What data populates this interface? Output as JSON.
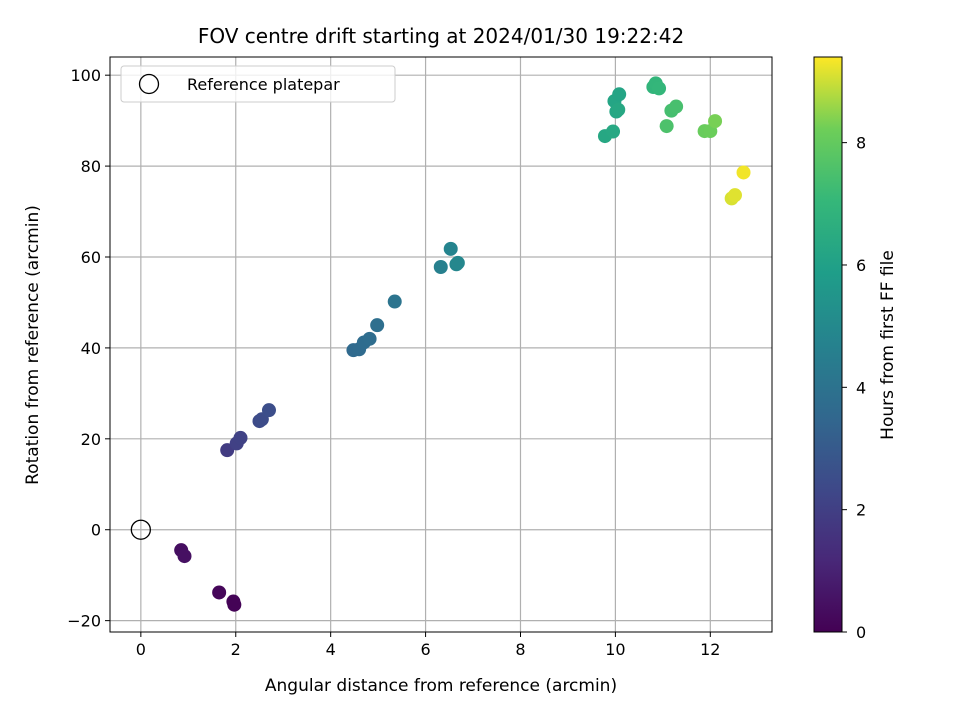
{
  "chart_data": {
    "type": "scatter",
    "title": "FOV centre drift starting at 2024/01/30 19:22:42",
    "xlabel": "Angular distance from reference (arcmin)",
    "ylabel": "Rotation from reference (arcmin)",
    "xlim": [
      -0.65,
      13.3
    ],
    "ylim": [
      -22.5,
      104.0
    ],
    "xticks": [
      0,
      2,
      4,
      6,
      8,
      10,
      12
    ],
    "yticks": [
      -20,
      0,
      20,
      40,
      60,
      80,
      100
    ],
    "grid": true,
    "legend": {
      "location": "top-left",
      "entries": [
        "Reference platepar"
      ]
    },
    "reference_point": {
      "x": 0,
      "y": 0,
      "label": "Reference platepar"
    },
    "colorbar": {
      "label": "Hours from first FF file",
      "range": [
        0,
        9.4
      ],
      "ticks": [
        0,
        2,
        4,
        6,
        8
      ],
      "colormap": "viridis"
    },
    "points": [
      {
        "x": 0.85,
        "y": -4.5,
        "c": 0.4
      },
      {
        "x": 0.92,
        "y": -5.8,
        "c": 0.45
      },
      {
        "x": 1.65,
        "y": -13.8,
        "c": 0.15
      },
      {
        "x": 1.95,
        "y": -15.8,
        "c": 0.1
      },
      {
        "x": 1.97,
        "y": -16.5,
        "c": 0.05
      },
      {
        "x": 1.82,
        "y": 17.5,
        "c": 1.9
      },
      {
        "x": 2.02,
        "y": 19.0,
        "c": 2.05
      },
      {
        "x": 2.1,
        "y": 20.2,
        "c": 2.1
      },
      {
        "x": 2.5,
        "y": 23.9,
        "c": 2.4
      },
      {
        "x": 2.55,
        "y": 24.3,
        "c": 2.45
      },
      {
        "x": 2.7,
        "y": 26.3,
        "c": 2.55
      },
      {
        "x": 4.48,
        "y": 39.5,
        "c": 3.6
      },
      {
        "x": 4.6,
        "y": 39.7,
        "c": 3.65
      },
      {
        "x": 4.7,
        "y": 41.2,
        "c": 3.7
      },
      {
        "x": 4.82,
        "y": 42.0,
        "c": 3.75
      },
      {
        "x": 4.98,
        "y": 45.0,
        "c": 3.85
      },
      {
        "x": 5.35,
        "y": 50.2,
        "c": 4.05
      },
      {
        "x": 6.32,
        "y": 57.8,
        "c": 4.6
      },
      {
        "x": 6.53,
        "y": 61.8,
        "c": 4.8
      },
      {
        "x": 6.65,
        "y": 58.4,
        "c": 4.85
      },
      {
        "x": 6.68,
        "y": 58.7,
        "c": 4.9
      },
      {
        "x": 9.78,
        "y": 86.6,
        "c": 6.3
      },
      {
        "x": 9.95,
        "y": 87.6,
        "c": 6.35
      },
      {
        "x": 9.98,
        "y": 94.3,
        "c": 6.2
      },
      {
        "x": 10.02,
        "y": 92.0,
        "c": 6.25
      },
      {
        "x": 10.06,
        "y": 92.4,
        "c": 6.3
      },
      {
        "x": 10.08,
        "y": 95.8,
        "c": 6.15
      },
      {
        "x": 10.8,
        "y": 97.4,
        "c": 6.9
      },
      {
        "x": 10.85,
        "y": 98.2,
        "c": 6.95
      },
      {
        "x": 10.92,
        "y": 97.1,
        "c": 7.0
      },
      {
        "x": 11.08,
        "y": 88.8,
        "c": 7.55
      },
      {
        "x": 11.18,
        "y": 92.2,
        "c": 7.4
      },
      {
        "x": 11.28,
        "y": 93.1,
        "c": 7.45
      },
      {
        "x": 11.88,
        "y": 87.7,
        "c": 8.1
      },
      {
        "x": 12.0,
        "y": 87.7,
        "c": 8.15
      },
      {
        "x": 12.1,
        "y": 89.9,
        "c": 8.3
      },
      {
        "x": 12.45,
        "y": 72.9,
        "c": 9.1
      },
      {
        "x": 12.52,
        "y": 73.6,
        "c": 9.15
      },
      {
        "x": 12.7,
        "y": 78.6,
        "c": 9.3
      }
    ]
  }
}
